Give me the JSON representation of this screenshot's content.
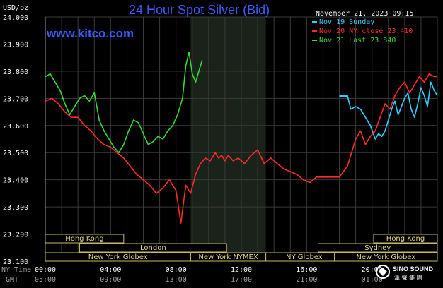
{
  "header": {
    "title": "24 Hour Spot Silver (Bid)",
    "date": "November 21, 2023 09:15",
    "site": "www.kitco.com",
    "units": "USD/oz"
  },
  "legend": [
    {
      "text": "Nov 19 Sunday",
      "color": "#33ccff"
    },
    {
      "text": "Nov 20 NY close 23.410",
      "color": "#ff2a2a"
    },
    {
      "text": "Nov 21 Last 23.840",
      "color": "#33dd33"
    }
  ],
  "colors": {
    "highlight": "#1a231a",
    "grid": "#3a3a3a",
    "session": "#c8b86a"
  },
  "axis_labels": {
    "ny_time": "NY Time",
    "gmt": "GMT"
  },
  "watermark": {
    "line1": "SINO SOUND",
    "line2": "漢 聲 集 團"
  },
  "sessions": [
    {
      "label": "Hong Kong",
      "start_hour": 0,
      "end_hour": 5
    },
    {
      "label": "London",
      "start_hour": 5,
      "end_hour": 16
    },
    {
      "label": "New York Globex",
      "start_hour": 0,
      "end_hour": 5
    },
    {
      "label": "New York NYMEX",
      "start_hour": 8,
      "end_hour": 13.5
    },
    {
      "label": "NY Globex",
      "start_hour": 13.5,
      "end_hour": 17
    },
    {
      "label": "Hong Kong",
      "start_hour": 19,
      "end_hour": 24
    },
    {
      "label": "Sydney",
      "start_hour": 17,
      "end_hour": 24
    },
    {
      "label": "New York Globex",
      "start_hour": 18,
      "end_hour": 24
    }
  ],
  "chart_data": {
    "type": "line",
    "title": "24 Hour Spot Silver (Bid)",
    "ylabel": "USD/oz",
    "xlabel": "NY Time",
    "ylim": [
      23.1,
      24.0
    ],
    "xlim": [
      0,
      24
    ],
    "highlight_range": [
      8.9,
      13.5
    ],
    "x_ticks": [
      {
        "value": 0,
        "ny": "00:00",
        "gmt": "05:00"
      },
      {
        "value": 4,
        "ny": "04:00",
        "gmt": "09:00"
      },
      {
        "value": 8,
        "ny": "08:00",
        "gmt": "13:00"
      },
      {
        "value": 12,
        "ny": "12:00",
        "gmt": "17:00"
      },
      {
        "value": 16,
        "ny": "16:00",
        "gmt": "21:00"
      },
      {
        "value": 20,
        "ny": "20:00",
        "gmt": "01:00"
      },
      {
        "value": 24,
        "ny": "",
        "gmt": ""
      }
    ],
    "y_ticks": [
      "24.000",
      "23.900",
      "23.800",
      "23.700",
      "23.600",
      "23.500",
      "23.400",
      "23.300",
      "23.200",
      "23.100"
    ],
    "series": [
      {
        "name": "Nov 19 Sunday",
        "color": "#33ccff",
        "x": [
          18,
          18.5,
          18.7,
          19.0,
          19.3,
          19.6,
          19.9,
          20.2,
          20.4,
          20.6,
          20.8,
          21.0,
          21.2,
          21.4,
          21.6,
          21.8,
          22.0,
          22.2,
          22.4,
          22.6,
          22.8,
          23.0,
          23.2,
          23.4,
          23.6,
          23.8,
          24.0
        ],
        "y": [
          23.71,
          23.71,
          23.66,
          23.67,
          23.66,
          23.63,
          23.6,
          23.55,
          23.57,
          23.56,
          23.58,
          23.62,
          23.66,
          23.69,
          23.64,
          23.67,
          23.7,
          23.72,
          23.66,
          23.63,
          23.68,
          23.74,
          23.71,
          23.67,
          23.76,
          23.73,
          23.71
        ]
      },
      {
        "name": "Nov 20 NY close 23.410",
        "color": "#ff2a2a",
        "x": [
          0,
          0.4,
          0.8,
          1.2,
          1.6,
          2.0,
          2.4,
          2.8,
          3.2,
          3.6,
          4.0,
          4.4,
          4.8,
          5.2,
          5.6,
          6.0,
          6.4,
          6.8,
          7.2,
          7.6,
          8.0,
          8.3,
          8.6,
          8.9,
          9.2,
          9.5,
          9.8,
          10.1,
          10.4,
          10.6,
          10.8,
          11.0,
          11.2,
          11.5,
          11.8,
          12.2,
          12.6,
          13.0,
          13.4,
          13.8,
          14.2,
          14.6,
          15.0,
          15.4,
          15.8,
          16.2,
          16.6,
          17.0,
          17.5,
          18.0,
          18.5,
          19.0,
          19.3,
          19.6,
          19.9,
          20.2,
          20.5,
          20.8,
          21.1,
          21.4,
          21.7,
          22.0,
          22.3,
          22.6,
          22.9,
          23.2,
          23.5,
          23.8,
          24.0
        ],
        "y": [
          23.69,
          23.7,
          23.68,
          23.65,
          23.63,
          23.63,
          23.6,
          23.58,
          23.55,
          23.53,
          23.52,
          23.5,
          23.48,
          23.45,
          23.42,
          23.4,
          23.38,
          23.35,
          23.37,
          23.4,
          23.36,
          23.24,
          23.38,
          23.35,
          23.42,
          23.46,
          23.48,
          23.47,
          23.5,
          23.48,
          23.49,
          23.47,
          23.49,
          23.47,
          23.48,
          23.46,
          23.49,
          23.51,
          23.46,
          23.48,
          23.46,
          23.44,
          23.43,
          23.42,
          23.4,
          23.39,
          23.41,
          23.41,
          23.41,
          23.41,
          23.45,
          23.55,
          23.58,
          23.53,
          23.56,
          23.58,
          23.63,
          23.68,
          23.66,
          23.71,
          23.74,
          23.76,
          23.72,
          23.75,
          23.78,
          23.76,
          23.79,
          23.78,
          23.78
        ]
      },
      {
        "name": "Nov 21 Last 23.840",
        "color": "#33dd33",
        "x": [
          0,
          0.3,
          0.6,
          0.9,
          1.2,
          1.5,
          1.8,
          2.1,
          2.4,
          2.7,
          3.0,
          3.3,
          3.6,
          3.9,
          4.2,
          4.5,
          4.8,
          5.1,
          5.4,
          5.7,
          6.0,
          6.3,
          6.6,
          6.9,
          7.2,
          7.5,
          7.8,
          8.1,
          8.4,
          8.6,
          8.8,
          9.0,
          9.2,
          9.4,
          9.6
        ],
        "y": [
          23.78,
          23.79,
          23.76,
          23.73,
          23.68,
          23.64,
          23.67,
          23.7,
          23.71,
          23.69,
          23.72,
          23.62,
          23.58,
          23.55,
          23.52,
          23.5,
          23.53,
          23.58,
          23.62,
          23.61,
          23.57,
          23.53,
          23.54,
          23.56,
          23.55,
          23.58,
          23.6,
          23.64,
          23.7,
          23.82,
          23.87,
          23.79,
          23.76,
          23.8,
          23.84
        ]
      }
    ]
  }
}
